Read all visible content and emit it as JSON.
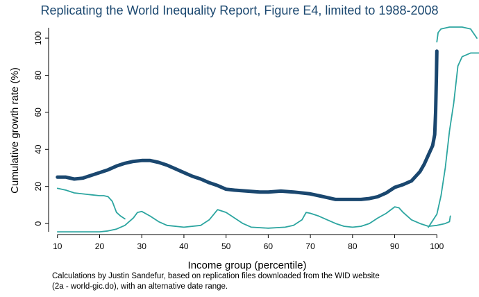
{
  "chart_data": {
    "type": "line",
    "title": "Replicating the World Inequality Report, Figure E4, limited to 1988-2008",
    "x_label": "Income group (percentile)",
    "y_label": "Cumulative growth rate (%)",
    "note": [
      "Calculations by Justin Sandefur, based on replication files downloaded from the WID website",
      "(2a - world-gic.do), with an alternative date range."
    ],
    "xlim": [
      7.9,
      110
    ],
    "ylim": [
      -6.7,
      107.5
    ],
    "xticks": [
      10,
      20,
      30,
      40,
      50,
      60,
      70,
      80,
      90,
      100
    ],
    "yticks": [
      0,
      20,
      40,
      60,
      80,
      100
    ],
    "series": [
      {
        "color": "#1a476f",
        "width": 5,
        "x": [
          10,
          12,
          14,
          16,
          18,
          20,
          22,
          24,
          26,
          28,
          30,
          32,
          34,
          36,
          38,
          40,
          42,
          44,
          46,
          48,
          50,
          52,
          55,
          58,
          60,
          63,
          66,
          68,
          70,
          72,
          74,
          76,
          78,
          80,
          82,
          84,
          86,
          88,
          90,
          92,
          94,
          96,
          97,
          98,
          99,
          99.5,
          99.7,
          99.9,
          100
        ],
        "values": [
          25,
          25,
          24,
          24.5,
          26,
          27.5,
          29,
          31,
          32.5,
          33.5,
          34,
          34,
          33,
          31.5,
          29.5,
          27.5,
          25.5,
          24,
          22,
          20.5,
          18.5,
          18,
          17.5,
          17,
          17,
          17.5,
          17,
          16.5,
          16,
          15,
          14,
          13,
          13,
          13,
          13,
          13.5,
          14.5,
          16.5,
          19.5,
          21,
          23,
          28,
          32,
          37,
          42,
          48,
          60,
          80,
          93
        ]
      },
      {
        "color": "#2ca5a0",
        "width": 1.8,
        "x": [
          10,
          12,
          14,
          16,
          18,
          20,
          21,
          22,
          23,
          24,
          25,
          26
        ],
        "values": [
          19,
          18,
          16.5,
          16,
          15.5,
          15,
          15,
          14.5,
          12,
          6,
          4,
          2.5
        ]
      },
      {
        "color": "#2ca5a0",
        "width": 1.8,
        "x": [
          10,
          15,
          20,
          22,
          24,
          26,
          28,
          29,
          30,
          32,
          34,
          36,
          40,
          44,
          46,
          48,
          50,
          52,
          54,
          56,
          60,
          64,
          66,
          68,
          69,
          70,
          72,
          74,
          76,
          78,
          80,
          82,
          84,
          86,
          88,
          90,
          91,
          92,
          94,
          96,
          98,
          100,
          102,
          103,
          103.2
        ],
        "values": [
          -4.5,
          -4.5,
          -4.5,
          -4,
          -3,
          -1,
          3,
          6,
          6.5,
          4,
          1,
          -1,
          -2,
          -1,
          2,
          7.5,
          6,
          3,
          0,
          -2,
          -2.5,
          -2,
          -1,
          2,
          6,
          5.5,
          4,
          2,
          0,
          -1.5,
          -2,
          -1.5,
          0,
          3,
          5.5,
          9,
          8.5,
          6,
          2,
          0,
          -1.5,
          -1,
          0,
          1,
          4
        ]
      },
      {
        "color": "#2ca5a0",
        "width": 1.8,
        "x": [
          98,
          100,
          101,
          102,
          103,
          104,
          105,
          106,
          108,
          110
        ],
        "values": [
          -2,
          5,
          15,
          30,
          50,
          65,
          85,
          90,
          92,
          92
        ]
      },
      {
        "color": "#2ca5a0",
        "width": 1.8,
        "x": [
          100,
          100.3,
          101,
          103,
          106,
          108,
          109.5
        ],
        "values": [
          98,
          103,
          105,
          106,
          106,
          105,
          100
        ]
      }
    ]
  }
}
